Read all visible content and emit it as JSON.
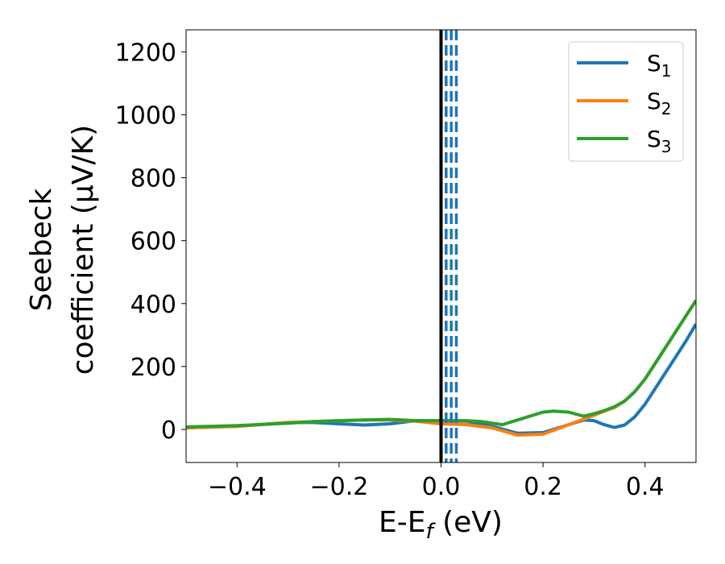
{
  "chart_data": {
    "type": "line",
    "xlabel": {
      "main": "E-E",
      "sub": "f",
      "unit": " (eV)"
    },
    "ylabel": {
      "line1": "Seebeck",
      "line2": "coefficient  (μV/K)"
    },
    "xlim": [
      -0.5,
      0.5
    ],
    "ylim": [
      -105,
      1270
    ],
    "xticks": [
      -0.4,
      -0.2,
      0.0,
      0.2,
      0.4
    ],
    "xtick_labels": [
      "−0.4",
      "−0.2",
      "0.0",
      "0.2",
      "0.4"
    ],
    "yticks": [
      0,
      200,
      400,
      600,
      800,
      1000,
      1200
    ],
    "ytick_labels": [
      "0",
      "200",
      "400",
      "600",
      "800",
      "1000",
      "1200"
    ],
    "grid": false,
    "legend_placement": "top-right",
    "vertical_lines": [
      {
        "x": 0.0,
        "style": "solid",
        "color": "#000000"
      },
      {
        "x": 0.01,
        "style": "dashed",
        "color": "#1f77b4"
      },
      {
        "x": 0.02,
        "style": "dashed",
        "color": "#1f77b4"
      },
      {
        "x": 0.03,
        "style": "dashed",
        "color": "#1f77b4"
      }
    ],
    "series": [
      {
        "name": "S",
        "sub": "1",
        "color": "#1f77b4",
        "x": [
          -0.5,
          -0.4,
          -0.3,
          -0.25,
          -0.2,
          -0.15,
          -0.1,
          -0.05,
          0.0,
          0.05,
          0.1,
          0.15,
          0.2,
          0.25,
          0.28,
          0.3,
          0.32,
          0.34,
          0.36,
          0.38,
          0.4,
          0.42,
          0.44,
          0.46,
          0.48,
          0.5
        ],
        "y": [
          5,
          10,
          22,
          22,
          18,
          14,
          18,
          28,
          28,
          26,
          10,
          -12,
          -10,
          15,
          30,
          28,
          15,
          6,
          14,
          40,
          80,
          130,
          180,
          230,
          280,
          335
        ]
      },
      {
        "name": "S",
        "sub": "2",
        "color": "#ff7f0e",
        "x": [
          -0.5,
          -0.4,
          -0.3,
          -0.25,
          -0.2,
          -0.15,
          -0.1,
          -0.05,
          0.0,
          0.05,
          0.1,
          0.15,
          0.2,
          0.25,
          0.28,
          0.3,
          0.32,
          0.34,
          0.36,
          0.38,
          0.4,
          0.42,
          0.44,
          0.46,
          0.48,
          0.5
        ],
        "y": [
          5,
          10,
          22,
          25,
          28,
          30,
          30,
          26,
          18,
          15,
          5,
          -18,
          -15,
          15,
          33,
          45,
          58,
          70,
          90,
          120,
          160,
          210,
          260,
          310,
          360,
          410
        ]
      },
      {
        "name": "S",
        "sub": "3",
        "color": "#2ca02c",
        "x": [
          -0.5,
          -0.4,
          -0.3,
          -0.25,
          -0.2,
          -0.15,
          -0.1,
          -0.05,
          0.0,
          0.05,
          0.08,
          0.12,
          0.16,
          0.2,
          0.22,
          0.25,
          0.28,
          0.3,
          0.32,
          0.34,
          0.36,
          0.38,
          0.4,
          0.42,
          0.44,
          0.46,
          0.48,
          0.5
        ],
        "y": [
          8,
          12,
          20,
          25,
          28,
          30,
          32,
          28,
          28,
          28,
          25,
          15,
          35,
          55,
          58,
          55,
          42,
          50,
          60,
          72,
          90,
          120,
          160,
          210,
          260,
          310,
          360,
          410
        ]
      }
    ]
  }
}
